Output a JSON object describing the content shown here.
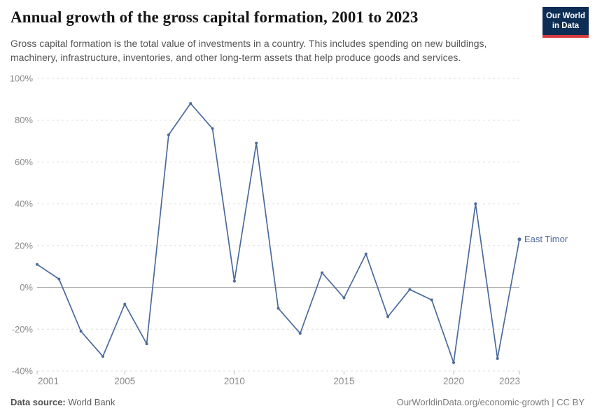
{
  "header": {
    "title": "Annual growth of the gross capital formation, 2001 to 2023",
    "subtitle": "Gross capital formation is the total value of investments in a country. This includes spending on new buildings, machinery, infrastructure, inventories, and other long-term assets that help produce goods and services.",
    "logo": {
      "line1": "Our World",
      "line2": "in Data",
      "bg_color": "#0d2d54",
      "accent_color": "#d83c3e"
    }
  },
  "chart_data": {
    "type": "line",
    "title": "Annual growth of the gross capital formation, 2001 to 2023",
    "entity": "East Timor",
    "x": [
      2001,
      2002,
      2003,
      2004,
      2005,
      2006,
      2007,
      2008,
      2009,
      2010,
      2011,
      2012,
      2013,
      2014,
      2015,
      2016,
      2017,
      2018,
      2019,
      2020,
      2021,
      2022,
      2023
    ],
    "series": [
      {
        "name": "East Timor",
        "color": "#4C6A9C",
        "values": [
          11,
          4,
          -21,
          -33,
          -8,
          -27,
          73,
          88,
          76,
          3,
          69,
          -10,
          -22,
          7,
          -5,
          16,
          -14,
          -1,
          -6,
          -36,
          40,
          -34,
          23
        ]
      }
    ],
    "xlim": [
      2001,
      2023
    ],
    "ylim": [
      -40,
      100
    ],
    "x_ticks": [
      2001,
      2005,
      2010,
      2015,
      2020,
      2023
    ],
    "y_ticks": [
      -40,
      -20,
      0,
      20,
      40,
      60,
      80,
      100
    ],
    "y_tick_labels": [
      "-40%",
      "-20%",
      "0%",
      "20%",
      "40%",
      "60%",
      "80%",
      "100%"
    ],
    "grid": "horizontal-dashed",
    "zero_line": true,
    "legend": "end-of-line label",
    "end_label": "East Timor"
  },
  "footer": {
    "source_label": "Data source:",
    "source_value": "World Bank",
    "credit": "OurWorldinData.org/economic-growth | CC BY"
  }
}
